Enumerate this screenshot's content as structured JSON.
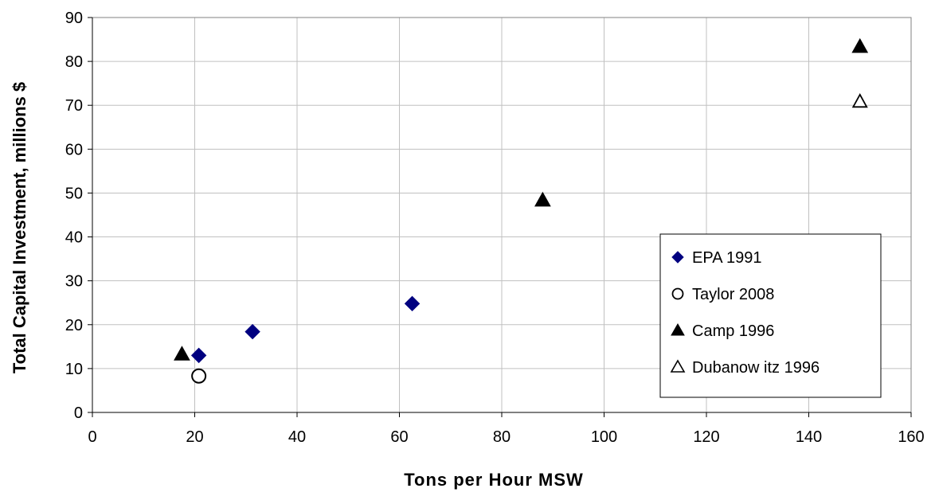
{
  "chart_data": {
    "type": "scatter",
    "title": "",
    "xlabel": "Tons per Hour MSW",
    "ylabel": "Total Capital Investment, millions $",
    "xlim": [
      0,
      160
    ],
    "ylim": [
      0,
      90
    ],
    "xticks": [
      "0",
      "20",
      "40",
      "60",
      "80",
      "100",
      "120",
      "140",
      "160"
    ],
    "yticks": [
      "0",
      "10",
      "20",
      "30",
      "40",
      "50",
      "60",
      "70",
      "80",
      "90"
    ],
    "grid": true,
    "legend_position": "bottom-right",
    "series": [
      {
        "name": "EPA 1991",
        "marker": "diamond",
        "color": "#000080",
        "points": [
          {
            "x": 20.8,
            "y": 13.0
          },
          {
            "x": 31.3,
            "y": 18.4
          },
          {
            "x": 62.5,
            "y": 24.8
          }
        ]
      },
      {
        "name": "Taylor 2008",
        "marker": "circle-open",
        "color": "#000000",
        "points": [
          {
            "x": 20.8,
            "y": 8.3
          }
        ]
      },
      {
        "name": "Camp 1996",
        "marker": "triangle",
        "color": "#000000",
        "points": [
          {
            "x": 17.5,
            "y": 13.2
          },
          {
            "x": 88.0,
            "y": 48.3
          },
          {
            "x": 150.0,
            "y": 83.3
          }
        ]
      },
      {
        "name": "Dubanow itz 1996",
        "marker": "triangle-open",
        "color": "#000000",
        "points": [
          {
            "x": 150.0,
            "y": 70.8
          }
        ]
      }
    ]
  }
}
